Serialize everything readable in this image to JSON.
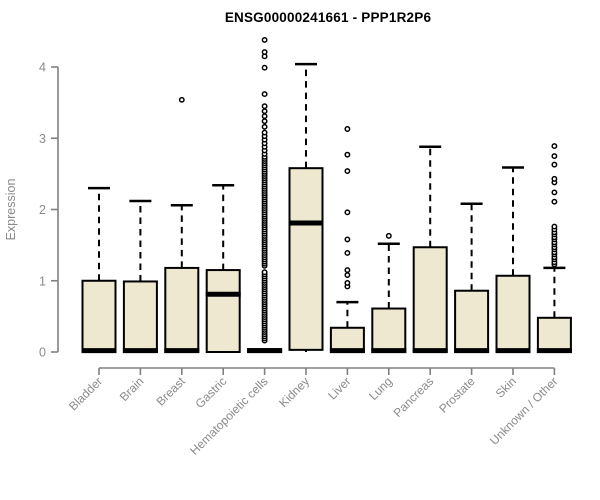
{
  "title": "ENSG00000241661 - PPP1R2P6",
  "chart_data": {
    "type": "boxplot",
    "title": "ENSG00000241661 - PPP1R2P6",
    "xlabel": "",
    "ylabel": "Expression",
    "ylim": [
      0,
      4.4
    ],
    "yticks": [
      0,
      1,
      2,
      3,
      4
    ],
    "grid": false,
    "legend": "none",
    "categories": [
      "Bladder",
      "Brain",
      "Breast",
      "Gastric",
      "Hematopoietic cells",
      "Kidney",
      "Liver",
      "Lung",
      "Pancreas",
      "Prostate",
      "Skin",
      "Unknown / Other"
    ],
    "boxes": [
      {
        "category": "Bladder",
        "whisker_low": 0,
        "q1": 0,
        "median": 0.02,
        "q3": 1.0,
        "whisker_high": 2.3,
        "outliers": []
      },
      {
        "category": "Brain",
        "whisker_low": 0,
        "q1": 0,
        "median": 0.02,
        "q3": 0.99,
        "whisker_high": 2.12,
        "outliers": []
      },
      {
        "category": "Breast",
        "whisker_low": 0,
        "q1": 0,
        "median": 0.02,
        "q3": 1.18,
        "whisker_high": 2.06,
        "outliers": [
          3.54
        ]
      },
      {
        "category": "Gastric",
        "whisker_low": 0,
        "q1": 0,
        "median": 0.81,
        "q3": 1.15,
        "whisker_high": 2.34,
        "outliers": []
      },
      {
        "category": "Hematopoietic cells",
        "whisker_low": 0,
        "q1": 0,
        "median": 0.02,
        "q3": 0.04,
        "whisker_high": 0.04,
        "outliers": [
          0.16,
          0.19,
          0.22,
          0.25,
          0.28,
          0.31,
          0.34,
          0.37,
          0.4,
          0.43,
          0.46,
          0.49,
          0.52,
          0.55,
          0.58,
          0.61,
          0.64,
          0.67,
          0.7,
          0.73,
          0.76,
          0.79,
          0.82,
          0.85,
          0.88,
          0.91,
          0.94,
          0.97,
          1.0,
          1.03,
          1.06,
          1.09,
          1.12,
          1.21,
          1.24,
          1.27,
          1.3,
          1.33,
          1.36,
          1.39,
          1.42,
          1.45,
          1.48,
          1.51,
          1.54,
          1.57,
          1.6,
          1.63,
          1.66,
          1.69,
          1.72,
          1.75,
          1.78,
          1.81,
          1.84,
          1.87,
          1.9,
          1.93,
          1.96,
          1.99,
          2.02,
          2.05,
          2.08,
          2.11,
          2.14,
          2.17,
          2.2,
          2.23,
          2.26,
          2.29,
          2.32,
          2.35,
          2.38,
          2.41,
          2.44,
          2.47,
          2.5,
          2.53,
          2.56,
          2.59,
          2.62,
          2.65,
          2.68,
          2.71,
          2.74,
          2.78,
          2.83,
          2.88,
          2.93,
          2.98,
          3.03,
          3.08,
          3.16,
          3.24,
          3.31,
          3.38,
          3.45,
          3.62,
          3.99,
          4.15,
          4.21,
          4.38
        ]
      },
      {
        "category": "Kidney",
        "whisker_low": 0,
        "q1": 0.03,
        "median": 1.81,
        "q3": 2.58,
        "whisker_high": 4.04,
        "outliers": []
      },
      {
        "category": "Liver",
        "whisker_low": 0,
        "q1": 0,
        "median": 0.02,
        "q3": 0.34,
        "whisker_high": 0.7,
        "outliers": [
          0.92,
          0.97,
          1.08,
          1.15,
          1.39,
          1.58,
          1.96,
          2.54,
          2.77,
          3.13
        ]
      },
      {
        "category": "Lung",
        "whisker_low": 0,
        "q1": 0,
        "median": 0.02,
        "q3": 0.61,
        "whisker_high": 1.52,
        "outliers": [
          1.63
        ]
      },
      {
        "category": "Pancreas",
        "whisker_low": 0,
        "q1": 0,
        "median": 0.02,
        "q3": 1.47,
        "whisker_high": 2.88,
        "outliers": []
      },
      {
        "category": "Prostate",
        "whisker_low": 0,
        "q1": 0,
        "median": 0.02,
        "q3": 0.86,
        "whisker_high": 2.08,
        "outliers": []
      },
      {
        "category": "Skin",
        "whisker_low": 0,
        "q1": 0,
        "median": 0.02,
        "q3": 1.07,
        "whisker_high": 2.59,
        "outliers": []
      },
      {
        "category": "Unknown / Other",
        "whisker_low": 0,
        "q1": 0,
        "median": 0.02,
        "q3": 0.48,
        "whisker_high": 1.18,
        "outliers": [
          1.23,
          1.26,
          1.3,
          1.33,
          1.37,
          1.4,
          1.44,
          1.47,
          1.51,
          1.54,
          1.58,
          1.61,
          1.65,
          1.68,
          1.72,
          1.76,
          2.11,
          2.24,
          2.38,
          2.43,
          2.63,
          2.75,
          2.89
        ]
      }
    ],
    "colors": {
      "box_fill": "#EDE8CF",
      "box_stroke": "#000000",
      "median": "#000000",
      "whisker": "#000000",
      "outlier_stroke": "#000000",
      "outlier_fill": "#ffffff",
      "axis": "#808080",
      "tick_label": "#8a8a8a",
      "axis_label": "#8a8a8a",
      "title": "#000000",
      "background": "#ffffff"
    }
  }
}
